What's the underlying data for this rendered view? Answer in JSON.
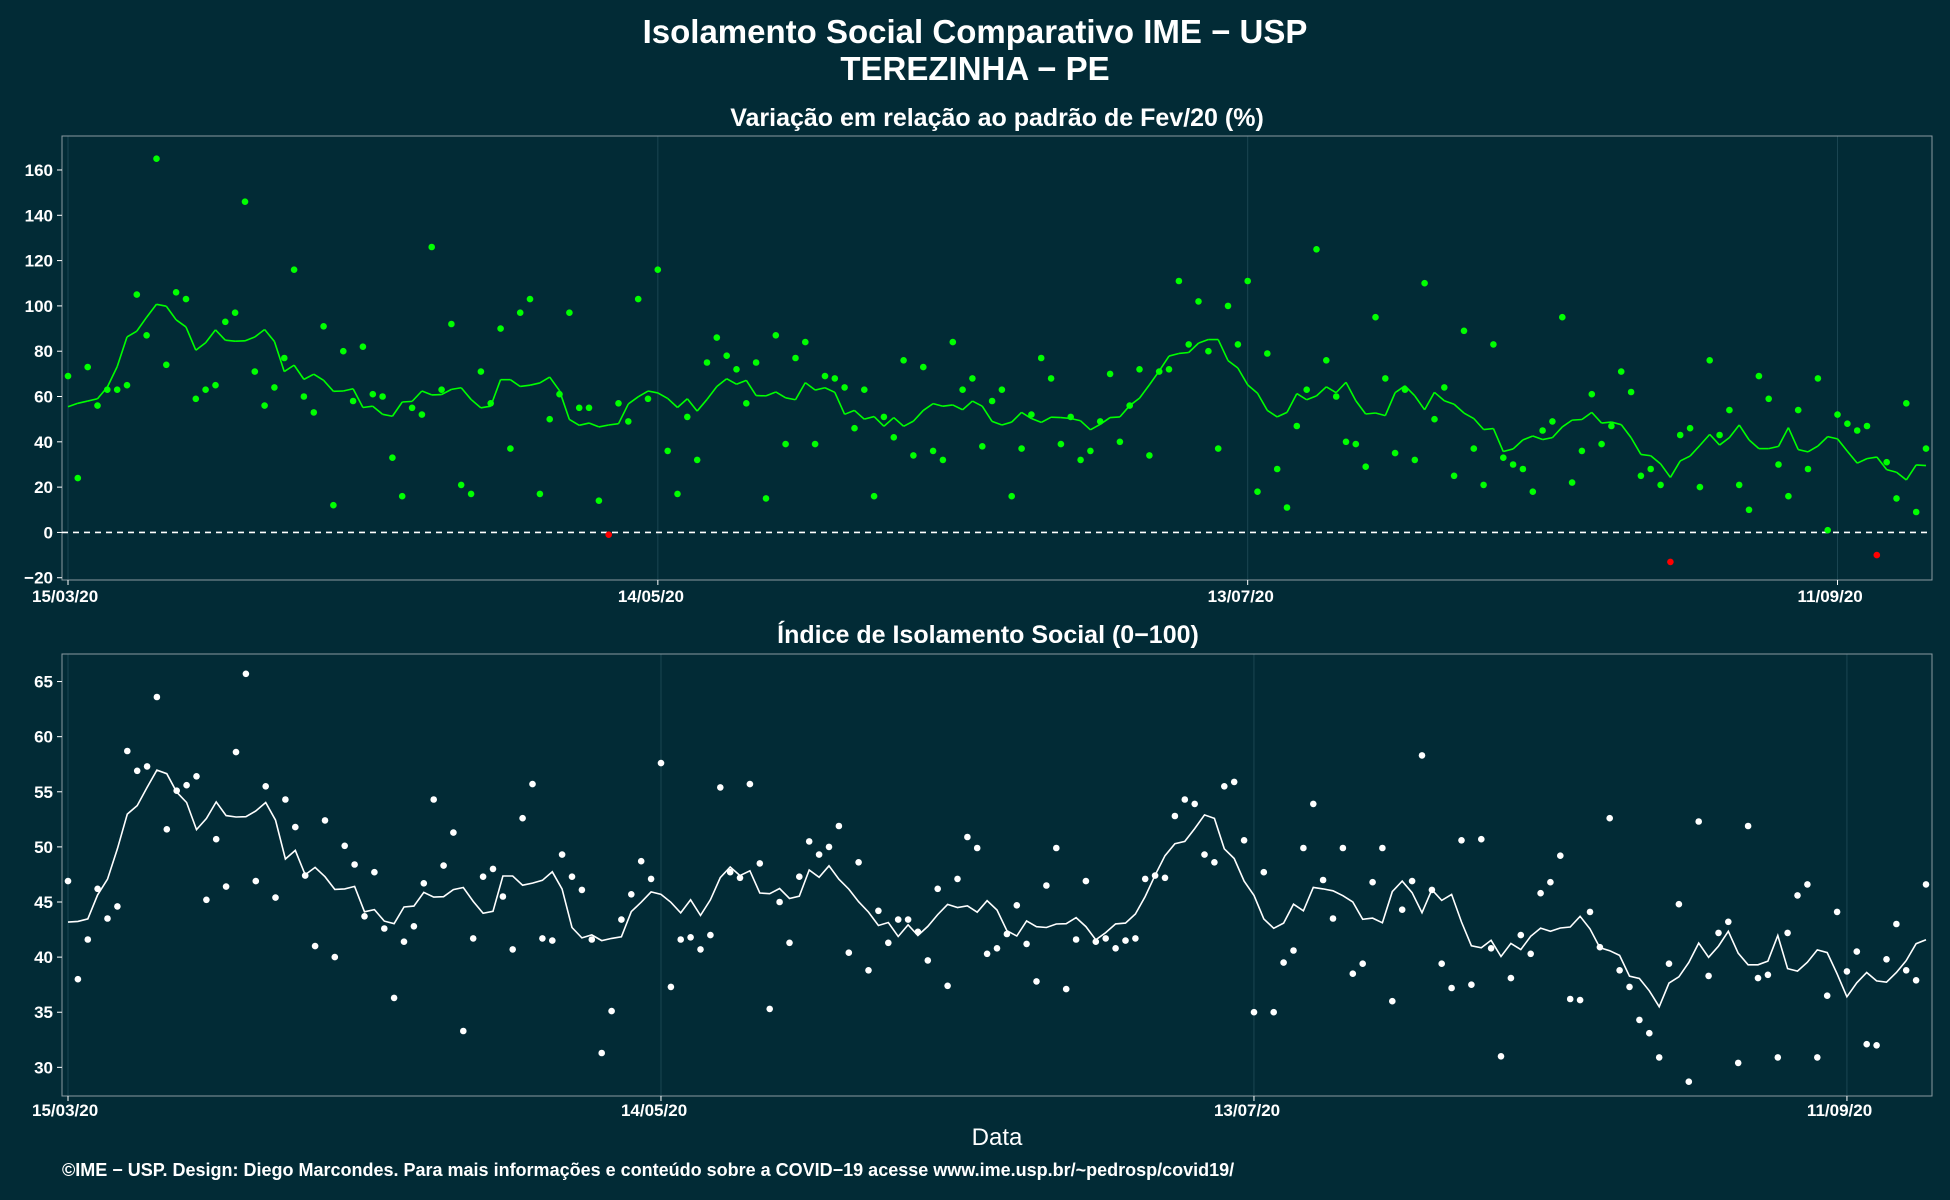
{
  "header": {
    "title": "Isolamento Social Comparativo IME − USP",
    "subtitle": "TEREZINHA − PE"
  },
  "footer": {
    "caption": "©IME − USP. Design: Diego Marcondes. Para mais informações e conteúdo sobre a COVID−19 acesse www.ime.usp.br/~pedrosp/covid19/"
  },
  "colors": {
    "background": "#022b36",
    "positive_points": "#00ff00",
    "negative_points": "#ff0000",
    "index_points": "#ffffff",
    "zero_line": "#ffffff",
    "grid": "#1b4652"
  },
  "chart_data": [
    {
      "type": "scatter",
      "title": "Variação em relação ao padrão de Fev/20 (%)",
      "xlabel": "",
      "ylabel": "",
      "x_start": "15/03/20",
      "x_ticks": [
        "15/03/20",
        "14/05/20",
        "13/07/20",
        "11/09/20"
      ],
      "yticks": [
        -20,
        0,
        20,
        40,
        60,
        80,
        100,
        120,
        140,
        160
      ],
      "ylim": [
        -21,
        175
      ],
      "zero_line": 0,
      "smoothing": "7-day moving average line",
      "grid": true,
      "values": [
        69,
        24,
        73,
        56,
        63,
        63,
        65,
        105,
        87,
        165,
        74,
        106,
        103,
        59,
        63,
        65,
        93,
        97,
        146,
        71,
        56,
        64,
        77,
        116,
        60,
        53,
        91,
        12,
        80,
        58,
        82,
        61,
        60,
        33,
        16,
        55,
        52,
        126,
        63,
        92,
        21,
        17,
        71,
        57,
        90,
        37,
        97,
        103,
        17,
        50,
        61,
        97,
        55,
        55,
        14,
        -1,
        57,
        49,
        103,
        59,
        116,
        36,
        17,
        51,
        32,
        75,
        86,
        78,
        72,
        57,
        75,
        15,
        87,
        39,
        77,
        84,
        39,
        69,
        68,
        64,
        46,
        63,
        16,
        51,
        42,
        76,
        34,
        73,
        36,
        32,
        84,
        63,
        68,
        38,
        58,
        63,
        16,
        37,
        52,
        77,
        68,
        39,
        51,
        32,
        36,
        49,
        70,
        40,
        56,
        72,
        34,
        71,
        72,
        111,
        83,
        102,
        80,
        37,
        100,
        83,
        111,
        18,
        79,
        28,
        11,
        47,
        63,
        125,
        76,
        60,
        40,
        39,
        29,
        95,
        68,
        35,
        63,
        32,
        110,
        50,
        64,
        25,
        89,
        37,
        21,
        83,
        33,
        30,
        28,
        18,
        45,
        49,
        95,
        22,
        36,
        61,
        39,
        47,
        71,
        62,
        25,
        28,
        21,
        -13,
        43,
        46,
        20,
        76,
        43,
        54,
        21,
        10,
        69,
        59,
        30,
        16,
        54,
        28,
        68,
        1,
        52,
        48,
        45,
        47,
        -10,
        31,
        15,
        57,
        9,
        37
      ]
    },
    {
      "type": "scatter",
      "title": "Índice de Isolamento Social (0−100)",
      "xlabel": "Data",
      "ylabel": "",
      "x_start": "15/03/20",
      "x_ticks": [
        "15/03/20",
        "14/05/20",
        "13/07/20",
        "11/09/20"
      ],
      "yticks": [
        30,
        35,
        40,
        45,
        50,
        55,
        60,
        65
      ],
      "ylim": [
        27.4,
        67.5
      ],
      "smoothing": "7-day moving average line",
      "grid": true,
      "values": [
        46.9,
        38,
        41.6,
        46.2,
        43.5,
        44.6,
        58.7,
        56.9,
        57.3,
        63.6,
        51.6,
        55.1,
        55.6,
        56.4,
        45.2,
        50.7,
        46.4,
        58.6,
        65.7,
        46.9,
        55.5,
        45.4,
        54.3,
        51.8,
        47.4,
        41,
        52.4,
        40,
        50.1,
        48.4,
        43.7,
        47.7,
        42.6,
        36.3,
        41.4,
        42.8,
        46.7,
        54.3,
        48.3,
        51.3,
        33.3,
        41.7,
        47.3,
        48,
        45.5,
        40.7,
        52.6,
        55.7,
        41.7,
        41.5,
        49.3,
        47.3,
        46.1,
        41.6,
        31.3,
        35.1,
        43.4,
        45.7,
        48.7,
        47.1,
        57.6,
        37.3,
        41.6,
        41.8,
        40.7,
        42,
        55.4,
        47.7,
        47.2,
        55.7,
        48.5,
        35.3,
        45,
        41.3,
        47.3,
        50.5,
        49.3,
        50,
        51.9,
        40.4,
        48.6,
        38.8,
        44.2,
        41.3,
        43.4,
        43.4,
        42.3,
        39.7,
        46.2,
        37.4,
        47.1,
        50.9,
        49.9,
        40.3,
        40.8,
        42.1,
        44.7,
        41.2,
        37.8,
        46.5,
        49.9,
        37.1,
        41.6,
        46.9,
        41.4,
        41.7,
        40.8,
        41.5,
        41.7,
        47.1,
        47.4,
        47.2,
        52.8,
        54.3,
        53.9,
        49.3,
        48.6,
        55.5,
        55.9,
        50.6,
        35,
        47.7,
        35,
        39.5,
        40.6,
        49.9,
        53.9,
        47,
        43.5,
        49.9,
        38.5,
        39.4,
        46.8,
        49.9,
        36,
        44.3,
        46.9,
        58.3,
        46.1,
        39.4,
        37.2,
        50.6,
        37.5,
        50.7,
        40.8,
        31,
        38.1,
        42,
        40.3,
        45.8,
        46.8,
        49.2,
        36.2,
        36.1,
        44.1,
        40.9,
        52.6,
        38.8,
        37.3,
        34.3,
        33.1,
        30.9,
        39.4,
        44.8,
        28.7,
        52.3,
        38.3,
        42.2,
        43.2,
        30.4,
        51.9,
        38.1,
        38.4,
        30.9,
        42.2,
        45.6,
        46.6,
        30.9,
        36.5,
        44.1,
        38.7,
        40.5,
        32.1,
        32,
        39.8,
        43,
        38.8,
        37.9,
        46.6
      ]
    }
  ]
}
